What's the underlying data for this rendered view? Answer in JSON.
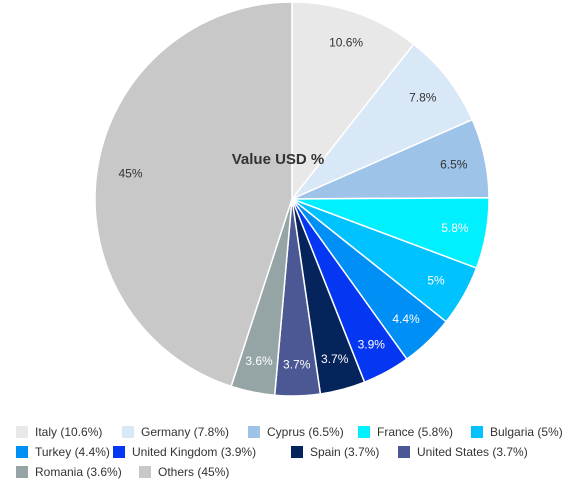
{
  "chart_data": {
    "type": "pie",
    "title": "Value USD %",
    "legend_position": "bottom",
    "slices": [
      {
        "label": "Italy (10.6%)",
        "value": 10.6,
        "value_label": "10.6%",
        "color": "#e8e8e8",
        "label_color": "#333333"
      },
      {
        "label": "Germany (7.8%)",
        "value": 7.8,
        "value_label": "7.8%",
        "color": "#d9e8f7",
        "label_color": "#333333"
      },
      {
        "label": "Cyprus (6.5%)",
        "value": 6.5,
        "value_label": "6.5%",
        "color": "#9dc3e8",
        "label_color": "#333333"
      },
      {
        "label": "France (5.8%)",
        "value": 5.8,
        "value_label": "5.8%",
        "color": "#00f0ff",
        "label_color": "#ffffff"
      },
      {
        "label": "Bulgaria (5%)",
        "value": 5.0,
        "value_label": "5%",
        "color": "#00c2ff",
        "label_color": "#ffffff"
      },
      {
        "label": "Turkey (4.4%)",
        "value": 4.4,
        "value_label": "4.4%",
        "color": "#0090f5",
        "label_color": "#ffffff"
      },
      {
        "label": "United Kingdom (3.9%)",
        "value": 3.9,
        "value_label": "3.9%",
        "color": "#0536f2",
        "label_color": "#ffffff"
      },
      {
        "label": "Spain (3.7%)",
        "value": 3.7,
        "value_label": "3.7%",
        "color": "#06245c",
        "label_color": "#ffffff"
      },
      {
        "label": "United States (3.7%)",
        "value": 3.7,
        "value_label": "3.7%",
        "color": "#4b5894",
        "label_color": "#ffffff"
      },
      {
        "label": "Romania (3.6%)",
        "value": 3.6,
        "value_label": "3.6%",
        "color": "#95a5a6",
        "label_color": "#ffffff"
      },
      {
        "label": "Others (45%)",
        "value": 45.0,
        "value_label": "45%",
        "color": "#c8c8c8",
        "label_color": "#333333"
      }
    ]
  }
}
